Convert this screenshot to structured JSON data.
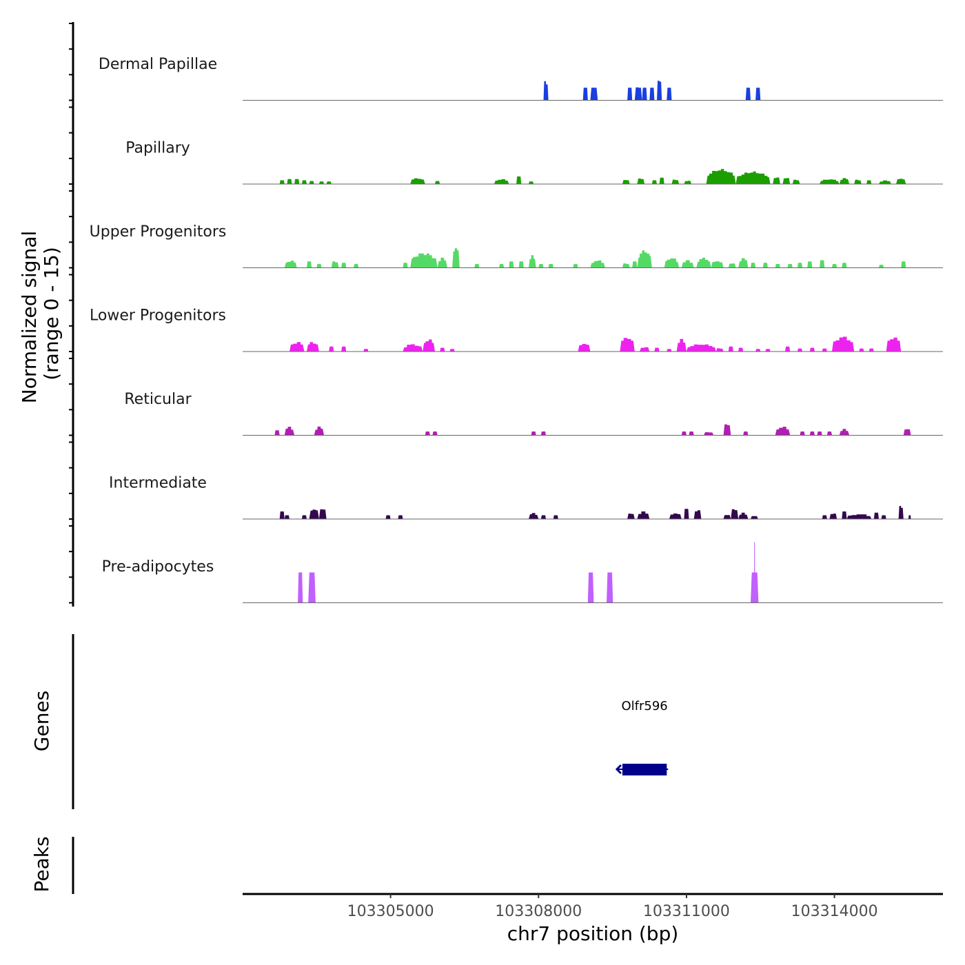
{
  "chart_data": {
    "type": "area",
    "title": "",
    "ylabel_signal": "Normalized signal",
    "ylabel_signal_range": "(range 0 - 15)",
    "ylabel_genes": "Genes",
    "ylabel_peaks": "Peaks",
    "xlabel": "chr7 position (bp)",
    "xlim": [
      103302000,
      103316200
    ],
    "ylim": [
      0,
      15
    ],
    "x_ticks": [
      103305000,
      103308000,
      103311000,
      103314000
    ],
    "x_tick_labels": [
      "103305000",
      "103308000",
      "103311000",
      "103314000"
    ],
    "series": [
      {
        "name": "Dermal Papillae",
        "color": "#1a3fe0",
        "peaks": [
          [
            103308100,
            103308200,
            9,
            2
          ],
          [
            103308900,
            103309000,
            5,
            1
          ],
          [
            103309050,
            103309200,
            5,
            1
          ],
          [
            103309800,
            103309900,
            5,
            1
          ],
          [
            103309950,
            103310100,
            6,
            2
          ],
          [
            103310100,
            103310200,
            5,
            1
          ],
          [
            103310250,
            103310350,
            5,
            1
          ],
          [
            103310400,
            103310500,
            9,
            2
          ],
          [
            103310600,
            103310700,
            5,
            1
          ],
          [
            103312200,
            103312300,
            5,
            1
          ],
          [
            103312400,
            103312500,
            5,
            1
          ]
        ]
      },
      {
        "name": "Papillary",
        "color": "#1a9e00",
        "peaks": [
          [
            103302750,
            103302850,
            1.5,
            1
          ],
          [
            103302900,
            103303000,
            2,
            1
          ],
          [
            103303050,
            103303150,
            2,
            1
          ],
          [
            103303200,
            103303300,
            1.5,
            1
          ],
          [
            103303350,
            103303450,
            1.2,
            1
          ],
          [
            103303550,
            103303650,
            1,
            1
          ],
          [
            103303700,
            103303800,
            1,
            1
          ],
          [
            103305400,
            103305700,
            2.5,
            4
          ],
          [
            103305900,
            103306000,
            1.2,
            1
          ],
          [
            103307100,
            103307400,
            2,
            4
          ],
          [
            103307550,
            103307650,
            3,
            1
          ],
          [
            103307800,
            103307900,
            1,
            1
          ],
          [
            103309700,
            103309850,
            2,
            2
          ],
          [
            103310000,
            103310150,
            2.5,
            2
          ],
          [
            103310300,
            103310400,
            1.5,
            1
          ],
          [
            103310450,
            103310550,
            2.5,
            1
          ],
          [
            103310700,
            103310850,
            2,
            2
          ],
          [
            103310950,
            103311100,
            1.5,
            2
          ],
          [
            103311400,
            103312000,
            6,
            10
          ],
          [
            103312000,
            103312700,
            5,
            12
          ],
          [
            103312750,
            103312900,
            3,
            2
          ],
          [
            103312950,
            103313100,
            3,
            2
          ],
          [
            103313150,
            103313300,
            2,
            2
          ],
          [
            103313700,
            103314100,
            2,
            6
          ],
          [
            103314100,
            103314300,
            2.5,
            3
          ],
          [
            103314400,
            103314550,
            2,
            2
          ],
          [
            103314650,
            103314750,
            1.5,
            1
          ],
          [
            103314900,
            103315150,
            1.5,
            3
          ],
          [
            103315250,
            103315450,
            2.5,
            3
          ]
        ]
      },
      {
        "name": "Upper Progenitors",
        "color": "#55d966",
        "peaks": [
          [
            103302850,
            103303100,
            3,
            4
          ],
          [
            103303300,
            103303400,
            2.5,
            1
          ],
          [
            103303500,
            103303600,
            1.5,
            1
          ],
          [
            103303800,
            103303950,
            3,
            2
          ],
          [
            103304000,
            103304100,
            2,
            1
          ],
          [
            103304250,
            103304350,
            1.5,
            1
          ],
          [
            103305250,
            103305350,
            2,
            1
          ],
          [
            103305400,
            103305950,
            6,
            10
          ],
          [
            103305950,
            103306150,
            4,
            3
          ],
          [
            103306250,
            103306400,
            9,
            3
          ],
          [
            103306700,
            103306800,
            1.5,
            1
          ],
          [
            103307200,
            103307300,
            1.5,
            1
          ],
          [
            103307400,
            103307500,
            2.5,
            1
          ],
          [
            103307600,
            103307700,
            2.5,
            1
          ],
          [
            103307800,
            103307950,
            5,
            3
          ],
          [
            103308000,
            103308100,
            1.5,
            1
          ],
          [
            103308200,
            103308300,
            1.5,
            1
          ],
          [
            103308700,
            103308800,
            1.5,
            1
          ],
          [
            103309050,
            103309350,
            3,
            4
          ],
          [
            103309700,
            103309850,
            2,
            2
          ],
          [
            103309900,
            103310000,
            2.5,
            1
          ],
          [
            103310000,
            103310300,
            7,
            6
          ],
          [
            103310550,
            103310850,
            4,
            5
          ],
          [
            103310900,
            103311150,
            3,
            3
          ],
          [
            103311200,
            103311500,
            4,
            5
          ],
          [
            103311500,
            103311750,
            3,
            3
          ],
          [
            103311850,
            103312000,
            2,
            2
          ],
          [
            103312050,
            103312250,
            4,
            3
          ],
          [
            103312300,
            103312400,
            2,
            1
          ],
          [
            103312550,
            103312650,
            2,
            1
          ],
          [
            103312800,
            103312900,
            1.5,
            1
          ],
          [
            103313050,
            103313150,
            1.5,
            1
          ],
          [
            103313250,
            103313350,
            2,
            1
          ],
          [
            103313450,
            103313550,
            2.5,
            1
          ],
          [
            103313700,
            103313800,
            3,
            1
          ],
          [
            103313950,
            103314050,
            1.5,
            1
          ],
          [
            103314150,
            103314250,
            2,
            1
          ],
          [
            103314900,
            103315000,
            1.2,
            1
          ],
          [
            103315350,
            103315450,
            2.5,
            1
          ]
        ]
      },
      {
        "name": "Lower Progenitors",
        "color": "#ee22ee",
        "peaks": [
          [
            103302950,
            103303250,
            4,
            4
          ],
          [
            103303300,
            103303550,
            4,
            4
          ],
          [
            103303750,
            103303850,
            2,
            1
          ],
          [
            103304000,
            103304100,
            2,
            1
          ],
          [
            103304450,
            103304550,
            1,
            1
          ],
          [
            103305250,
            103305650,
            3,
            5
          ],
          [
            103305650,
            103305900,
            5,
            4
          ],
          [
            103306000,
            103306100,
            1.5,
            1
          ],
          [
            103306200,
            103306300,
            1,
            1
          ],
          [
            103308800,
            103309050,
            3.5,
            3
          ],
          [
            103309650,
            103309950,
            6,
            4
          ],
          [
            103310050,
            103310250,
            2,
            2
          ],
          [
            103310350,
            103310450,
            1.5,
            1
          ],
          [
            103310600,
            103310700,
            1,
            1
          ],
          [
            103310800,
            103311000,
            5,
            3
          ],
          [
            103311000,
            103311600,
            3,
            8
          ],
          [
            103311600,
            103311750,
            1.5,
            2
          ],
          [
            103311850,
            103311950,
            2,
            1
          ],
          [
            103312050,
            103312150,
            1.5,
            1
          ],
          [
            103312400,
            103312500,
            1,
            1
          ],
          [
            103312600,
            103312700,
            1,
            1
          ],
          [
            103313000,
            103313100,
            2,
            1
          ],
          [
            103313250,
            103313350,
            1.2,
            1
          ],
          [
            103313500,
            103313600,
            1.5,
            1
          ],
          [
            103313750,
            103313850,
            1.2,
            1
          ],
          [
            103313950,
            103314400,
            6,
            6
          ],
          [
            103314500,
            103314600,
            1.2,
            1
          ],
          [
            103314700,
            103314800,
            1.2,
            1
          ],
          [
            103315050,
            103315350,
            6,
            4
          ]
        ]
      },
      {
        "name": "Reticular",
        "color": "#b020b0",
        "peaks": [
          [
            103302650,
            103302750,
            2,
            1
          ],
          [
            103302850,
            103303050,
            3.5,
            3
          ],
          [
            103303450,
            103303650,
            3.5,
            3
          ],
          [
            103305700,
            103305800,
            1.5,
            1
          ],
          [
            103305850,
            103305950,
            1.5,
            1
          ],
          [
            103307850,
            103307950,
            1.5,
            1
          ],
          [
            103308050,
            103308150,
            1.5,
            1
          ],
          [
            103310900,
            103311000,
            1.5,
            1
          ],
          [
            103311050,
            103311150,
            1.5,
            1
          ],
          [
            103311350,
            103311550,
            1.5,
            2
          ],
          [
            103311750,
            103311900,
            5,
            2
          ],
          [
            103312150,
            103312250,
            1.5,
            1
          ],
          [
            103312800,
            103313100,
            3.5,
            4
          ],
          [
            103313300,
            103313400,
            1.5,
            1
          ],
          [
            103313500,
            103313600,
            1.5,
            1
          ],
          [
            103313650,
            103313750,
            1.5,
            1
          ],
          [
            103313850,
            103313950,
            1.5,
            1
          ],
          [
            103314100,
            103314300,
            2.5,
            3
          ],
          [
            103315400,
            103315550,
            3,
            2
          ]
        ]
      },
      {
        "name": "Intermediate",
        "color": "#34084f",
        "peaks": [
          [
            103302750,
            103302850,
            3,
            1
          ],
          [
            103302850,
            103302950,
            1.5,
            1
          ],
          [
            103303200,
            103303300,
            1.5,
            1
          ],
          [
            103303350,
            103303550,
            4.5,
            3
          ],
          [
            103303550,
            103303700,
            4.5,
            2
          ],
          [
            103304900,
            103305000,
            1.5,
            1
          ],
          [
            103305150,
            103305250,
            1.5,
            1
          ],
          [
            103307800,
            103308000,
            2.5,
            3
          ],
          [
            103308050,
            103308150,
            1.5,
            1
          ],
          [
            103308300,
            103308400,
            1.5,
            1
          ],
          [
            103309800,
            103309950,
            2.5,
            2
          ],
          [
            103310000,
            103310250,
            3,
            3
          ],
          [
            103310650,
            103310900,
            2.5,
            3
          ],
          [
            103310950,
            103311050,
            4,
            1
          ],
          [
            103311150,
            103311300,
            4,
            2
          ],
          [
            103311750,
            103311900,
            2,
            2
          ],
          [
            103311900,
            103312050,
            4.5,
            2
          ],
          [
            103312050,
            103312250,
            2.5,
            3
          ],
          [
            103312300,
            103312450,
            1.5,
            2
          ],
          [
            103313750,
            103313850,
            1.5,
            1
          ],
          [
            103313900,
            103314050,
            2.5,
            2
          ],
          [
            103314150,
            103314250,
            3,
            1
          ],
          [
            103314250,
            103314750,
            2,
            5
          ],
          [
            103314800,
            103314900,
            2.5,
            1
          ],
          [
            103314950,
            103315050,
            1.5,
            1
          ],
          [
            103315300,
            103315400,
            6,
            2
          ],
          [
            103315500,
            103315550,
            1.5,
            1
          ]
        ]
      },
      {
        "name": "Pre-adipocytes",
        "color": "#c060ff",
        "peaks": [
          [
            103303120,
            103303220,
            12,
            1
          ],
          [
            103303330,
            103303480,
            12,
            1
          ],
          [
            103309000,
            103309120,
            12,
            1
          ],
          [
            103309380,
            103309510,
            12,
            1
          ],
          [
            103312300,
            103312460,
            12,
            1
          ],
          [
            103312370,
            103312390,
            24,
            1
          ]
        ]
      }
    ],
    "genes": [
      {
        "name": "Olfr596",
        "start": 103309700,
        "end": 103310600,
        "strand": "-",
        "color": "#00008b"
      }
    ],
    "peaks_track": []
  }
}
